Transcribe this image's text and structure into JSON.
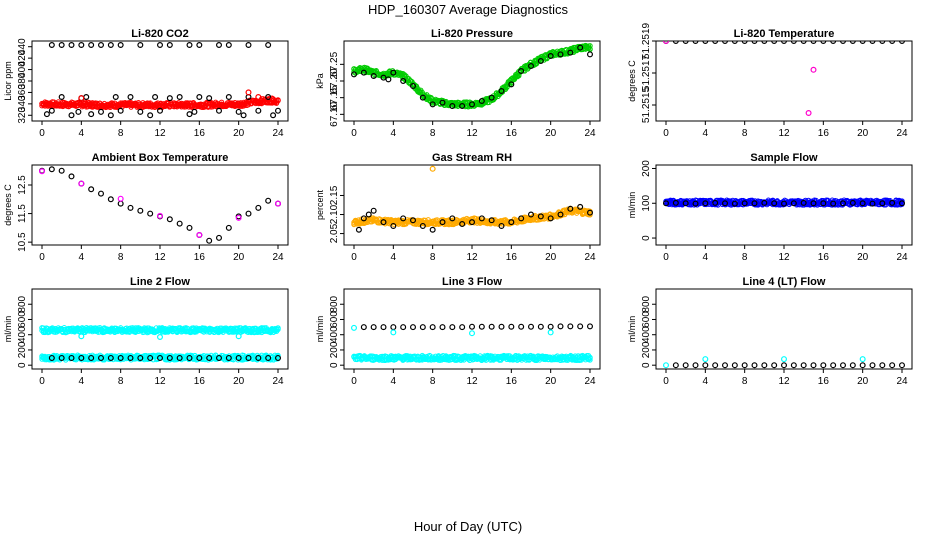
{
  "figure": {
    "title": "HDP_160307  Average Diagnostics",
    "xlabel": "Hour of Day (UTC)"
  },
  "chart_data": [
    {
      "type": "scatter",
      "title": "Li-820 CO2",
      "ylabel": "Licor ppm",
      "xlim": [
        0,
        24
      ],
      "ylim": [
        310,
        450
      ],
      "xticks": [
        "0",
        "4",
        "8",
        "12",
        "16",
        "20",
        "24"
      ],
      "yticks": [
        "320",
        "340",
        "360",
        "380",
        "400",
        "420",
        "440"
      ],
      "series": [
        {
          "name": "line1 avg",
          "color": "#ff0000",
          "style": "dense-band",
          "x": [
            0,
            2,
            4,
            6,
            8,
            10,
            12,
            14,
            16,
            18,
            20,
            21,
            22,
            23,
            24
          ],
          "y": [
            340,
            339,
            339,
            338,
            338,
            338,
            338,
            338,
            338,
            339,
            339,
            342,
            344,
            346,
            345
          ]
        },
        {
          "name": "high spikes",
          "color": "#000000",
          "style": "points",
          "x": [
            1,
            2,
            3,
            4,
            5,
            6,
            7,
            8,
            10,
            12,
            13,
            15,
            16,
            18,
            19,
            21,
            23
          ],
          "y": [
            443,
            443,
            443,
            443,
            443,
            443,
            443,
            443,
            443,
            443,
            443,
            443,
            443,
            443,
            443,
            443,
            443
          ]
        },
        {
          "name": "scatter",
          "color": "#000000",
          "style": "points",
          "x": [
            0.5,
            1,
            2,
            3,
            3.7,
            4,
            4.5,
            5,
            6,
            7,
            7.5,
            8,
            9,
            10,
            11,
            11.5,
            12,
            13,
            14,
            15,
            15.5,
            16,
            17,
            18,
            19,
            20,
            20.5,
            21,
            22,
            23,
            23.5,
            24
          ],
          "y": [
            322,
            328,
            352,
            320,
            326,
            350,
            352,
            322,
            326,
            320,
            352,
            328,
            352,
            326,
            320,
            352,
            328,
            350,
            352,
            322,
            326,
            352,
            350,
            328,
            352,
            326,
            320,
            352,
            328,
            352,
            320,
            328
          ]
        },
        {
          "name": "outliers",
          "color": "#ff0000",
          "style": "points",
          "x": [
            4,
            21,
            22,
            23.5
          ],
          "y": [
            350,
            360,
            352,
            348
          ]
        }
      ]
    },
    {
      "type": "scatter",
      "title": "Li-820 Pressure",
      "ylabel": "kPa",
      "xlim": [
        0,
        24
      ],
      "ylim": [
        67.08,
        67.32
      ],
      "xticks": [
        "0",
        "4",
        "8",
        "12",
        "16",
        "20",
        "24"
      ],
      "yticks": [
        "67.10",
        "67.15",
        "67.20",
        "67.25"
      ],
      "series": [
        {
          "name": "line 1",
          "color": "#00cc00",
          "style": "dense-band",
          "x": [
            0,
            1,
            2,
            3,
            4,
            5,
            6,
            7,
            8,
            9,
            10,
            11,
            12,
            13,
            14,
            15,
            16,
            17,
            18,
            19,
            20,
            21,
            22,
            23,
            24
          ],
          "y": [
            67.23,
            67.235,
            67.225,
            67.22,
            67.225,
            67.215,
            67.19,
            67.16,
            67.14,
            67.135,
            67.13,
            67.13,
            67.13,
            67.135,
            67.145,
            67.17,
            67.2,
            67.23,
            67.25,
            67.265,
            67.28,
            67.285,
            67.29,
            67.3,
            67.3
          ]
        },
        {
          "name": "line 2",
          "color": "#000000",
          "style": "points",
          "x": [
            0,
            1,
            2,
            3,
            3.5,
            4,
            5,
            6,
            7,
            8,
            9,
            10,
            11,
            12,
            13,
            14,
            15,
            16,
            17,
            18,
            19,
            20,
            21,
            22,
            23,
            24
          ],
          "y": [
            67.22,
            67.225,
            67.215,
            67.21,
            67.205,
            67.225,
            67.2,
            67.185,
            67.15,
            67.13,
            67.135,
            67.125,
            67.125,
            67.13,
            67.14,
            67.15,
            67.17,
            67.19,
            67.23,
            67.245,
            67.26,
            67.275,
            67.28,
            67.285,
            67.3,
            67.28
          ]
        }
      ]
    },
    {
      "type": "scatter",
      "title": "Li-820 Temperature",
      "ylabel": "degrees C",
      "xlim": [
        0,
        24
      ],
      "ylim": [
        51.2514,
        51.2519
      ],
      "xticks": [
        "0",
        "4",
        "8",
        "12",
        "16",
        "20",
        "24"
      ],
      "yticks": [
        "51.2515",
        "51.2517",
        "51.2519"
      ],
      "series": [
        {
          "name": "line 1",
          "color": "#000000",
          "style": "points",
          "x": [
            0,
            1,
            2,
            3,
            4,
            5,
            6,
            7,
            8,
            9,
            10,
            11,
            12,
            13,
            14,
            15,
            16,
            17,
            18,
            19,
            20,
            21,
            22,
            23,
            24
          ],
          "y": [
            51.2519,
            51.2519,
            51.2519,
            51.2519,
            51.2519,
            51.2519,
            51.2519,
            51.2519,
            51.2519,
            51.2519,
            51.2519,
            51.2519,
            51.2519,
            51.2519,
            51.2519,
            51.2519,
            51.2519,
            51.2519,
            51.2519,
            51.2519,
            51.2519,
            51.2519,
            51.2519,
            51.2519,
            51.2519
          ]
        },
        {
          "name": "line 2",
          "color": "#ff00cc",
          "style": "points",
          "x": [
            0,
            14.5,
            15
          ],
          "y": [
            51.2519,
            51.25145,
            51.25172
          ]
        }
      ]
    },
    {
      "type": "scatter",
      "title": "Ambient Box Temperature",
      "ylabel": "degrees C",
      "xlim": [
        0,
        24
      ],
      "ylim": [
        10.4,
        13.2
      ],
      "xticks": [
        "0",
        "4",
        "8",
        "12",
        "16",
        "20",
        "24"
      ],
      "yticks": [
        "10.5",
        "11.5",
        "12.5"
      ],
      "series": [
        {
          "name": "line 1",
          "color": "#000000",
          "style": "points",
          "x": [
            0,
            1,
            2,
            3,
            4,
            5,
            6,
            7,
            8,
            9,
            10,
            11,
            12,
            13,
            14,
            15,
            16,
            17,
            18,
            19,
            20,
            21,
            22,
            23,
            24
          ],
          "y": [
            13.0,
            13.05,
            13.0,
            12.8,
            12.55,
            12.35,
            12.2,
            12.0,
            11.85,
            11.7,
            11.6,
            11.5,
            11.4,
            11.3,
            11.15,
            11.0,
            10.75,
            10.55,
            10.65,
            11.0,
            11.4,
            11.5,
            11.7,
            11.95,
            11.85
          ]
        },
        {
          "name": "line 2",
          "color": "#ff00ff",
          "style": "points",
          "x": [
            0,
            4,
            8,
            12,
            16,
            20,
            24
          ],
          "y": [
            12.98,
            12.55,
            12.02,
            11.42,
            10.75,
            11.35,
            11.85
          ]
        }
      ]
    },
    {
      "type": "scatter",
      "title": "Gas Stream RH",
      "ylabel": "percent",
      "xlim": [
        0,
        24
      ],
      "ylim": [
        2.02,
        2.23
      ],
      "xticks": [
        "0",
        "4",
        "8",
        "12",
        "16",
        "20",
        "24"
      ],
      "yticks": [
        "2.05",
        "2.10",
        "2.15"
      ],
      "series": [
        {
          "name": "line 1",
          "color": "#ffaa00",
          "style": "dense-band",
          "x": [
            0,
            2,
            4,
            6,
            8,
            10,
            12,
            14,
            16,
            18,
            20,
            22,
            24
          ],
          "y": [
            2.08,
            2.085,
            2.08,
            2.08,
            2.08,
            2.08,
            2.085,
            2.08,
            2.08,
            2.09,
            2.095,
            2.11,
            2.105
          ]
        },
        {
          "name": "line 2",
          "color": "#000000",
          "style": "points",
          "x": [
            0.5,
            1,
            1.5,
            2,
            3,
            4,
            5,
            6,
            7,
            8,
            9,
            10,
            11,
            12,
            13,
            14,
            15,
            16,
            17,
            18,
            19,
            20,
            21,
            22,
            23,
            24
          ],
          "y": [
            2.06,
            2.09,
            2.1,
            2.11,
            2.08,
            2.07,
            2.09,
            2.085,
            2.07,
            2.06,
            2.08,
            2.09,
            2.075,
            2.08,
            2.09,
            2.085,
            2.07,
            2.08,
            2.09,
            2.1,
            2.095,
            2.09,
            2.1,
            2.115,
            2.12,
            2.105
          ]
        },
        {
          "name": "outlier",
          "color": "#ffaa00",
          "style": "points",
          "x": [
            8
          ],
          "y": [
            2.22
          ]
        }
      ]
    },
    {
      "type": "scatter",
      "title": "Sample Flow",
      "ylabel": "ml/min",
      "xlim": [
        0,
        24
      ],
      "ylim": [
        -20,
        210
      ],
      "xticks": [
        "0",
        "4",
        "8",
        "12",
        "16",
        "20",
        "24"
      ],
      "yticks": [
        "0",
        "100",
        "200"
      ],
      "series": [
        {
          "name": "line 1",
          "color": "#0000ff",
          "style": "dense-band",
          "x": [
            0,
            24
          ],
          "y": [
            102,
            102
          ]
        },
        {
          "name": "line 2",
          "color": "#000000",
          "style": "points",
          "x": [
            0,
            1,
            2,
            3,
            4,
            5,
            6,
            7,
            8,
            9,
            10,
            11,
            12,
            13,
            14,
            15,
            16,
            17,
            18,
            19,
            20,
            21,
            22,
            23,
            24
          ],
          "y": [
            100,
            101,
            100,
            99,
            100,
            101,
            100,
            99,
            100,
            100,
            101,
            100,
            99,
            100,
            101,
            100,
            100,
            99,
            100,
            101,
            100,
            99,
            100,
            101,
            100
          ]
        }
      ]
    },
    {
      "type": "scatter",
      "title": "Line 2 Flow",
      "ylabel": "ml/min",
      "xlim": [
        0,
        24
      ],
      "ylim": [
        -50,
        1000
      ],
      "xticks": [
        "0",
        "4",
        "8",
        "12",
        "16",
        "20",
        "24"
      ],
      "yticks": [
        "0",
        "200",
        "400",
        "600",
        "800"
      ],
      "series": [
        {
          "name": "line 1",
          "color": "#00ffff",
          "style": "dense-band",
          "x": [
            0,
            24
          ],
          "y": [
            460,
            460
          ]
        },
        {
          "name": "line 2",
          "color": "#00ffff",
          "style": "dense-band",
          "x": [
            0,
            24
          ],
          "y": [
            100,
            100
          ]
        },
        {
          "name": "line 3",
          "color": "#000000",
          "style": "points",
          "x": [
            1,
            2,
            3,
            4,
            5,
            6,
            7,
            8,
            9,
            10,
            11,
            12,
            13,
            14,
            15,
            16,
            17,
            18,
            19,
            20,
            21,
            22,
            23,
            24
          ],
          "y": [
            95,
            95,
            95,
            95,
            95,
            95,
            95,
            95,
            95,
            95,
            95,
            95,
            95,
            95,
            95,
            95,
            95,
            95,
            95,
            95,
            95,
            95,
            95,
            95
          ]
        },
        {
          "name": "outliers",
          "color": "#00ffff",
          "style": "points",
          "x": [
            4,
            12,
            20
          ],
          "y": [
            380,
            370,
            380
          ]
        }
      ]
    },
    {
      "type": "scatter",
      "title": "Line 3 Flow",
      "ylabel": "ml/min",
      "xlim": [
        0,
        24
      ],
      "ylim": [
        -50,
        1000
      ],
      "xticks": [
        "0",
        "4",
        "8",
        "12",
        "16",
        "20",
        "24"
      ],
      "yticks": [
        "0",
        "200",
        "400",
        "600",
        "800"
      ],
      "series": [
        {
          "name": "line 1",
          "color": "#000000",
          "style": "points",
          "x": [
            1,
            2,
            3,
            4,
            5,
            6,
            7,
            8,
            9,
            10,
            11,
            12,
            13,
            14,
            15,
            16,
            17,
            18,
            19,
            20,
            21,
            22,
            23,
            24
          ],
          "y": [
            500,
            500,
            500,
            500,
            500,
            500,
            500,
            500,
            500,
            500,
            500,
            505,
            505,
            505,
            505,
            505,
            505,
            505,
            505,
            505,
            510,
            510,
            510,
            510
          ]
        },
        {
          "name": "line 2",
          "color": "#00ffff",
          "style": "dense-band",
          "x": [
            0,
            24
          ],
          "y": [
            95,
            95
          ]
        },
        {
          "name": "outliers",
          "color": "#00ffff",
          "style": "points",
          "x": [
            0,
            4,
            12,
            20
          ],
          "y": [
            490,
            430,
            420,
            430
          ]
        }
      ]
    },
    {
      "type": "scatter",
      "title": "Line 4 (LT) Flow",
      "ylabel": "ml/min",
      "xlim": [
        0,
        24
      ],
      "ylim": [
        -50,
        1000
      ],
      "xticks": [
        "0",
        "4",
        "8",
        "12",
        "16",
        "20",
        "24"
      ],
      "yticks": [
        "0",
        "200",
        "400",
        "600",
        "800"
      ],
      "series": [
        {
          "name": "line 1",
          "color": "#000000",
          "style": "points",
          "x": [
            1,
            2,
            3,
            4,
            5,
            6,
            7,
            8,
            9,
            10,
            11,
            12,
            13,
            14,
            15,
            16,
            17,
            18,
            19,
            20,
            21,
            22,
            23,
            24
          ],
          "y": [
            0,
            0,
            0,
            0,
            0,
            0,
            0,
            0,
            0,
            0,
            0,
            0,
            0,
            0,
            0,
            0,
            0,
            0,
            0,
            0,
            0,
            0,
            0,
            0
          ]
        },
        {
          "name": "line 2",
          "color": "#00ffff",
          "style": "points",
          "x": [
            0,
            4,
            12,
            20
          ],
          "y": [
            0,
            80,
            80,
            80
          ]
        }
      ]
    }
  ]
}
